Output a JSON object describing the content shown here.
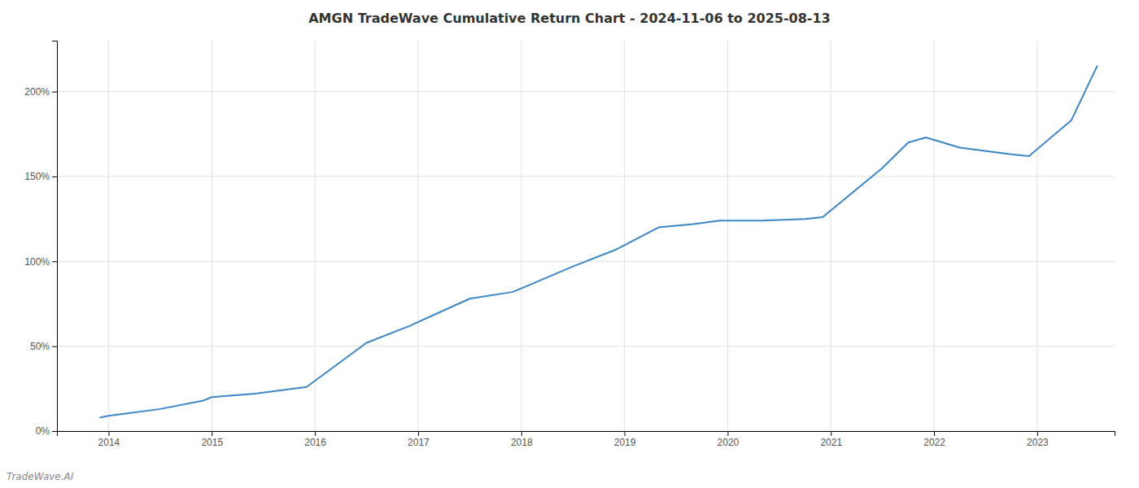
{
  "chart_data": {
    "type": "line",
    "title": "AMGN TradeWave Cumulative Return Chart - 2024-11-06 to 2025-08-13",
    "annotations": [
      "TradeWave.AI"
    ],
    "x": [
      2013.92,
      2014.0,
      2014.5,
      2014.92,
      2015.0,
      2015.42,
      2015.92,
      2016.5,
      2016.92,
      2017.5,
      2017.92,
      2018.5,
      2018.92,
      2019.33,
      2019.67,
      2019.92,
      2020.33,
      2020.75,
      2020.92,
      2021.5,
      2021.75,
      2021.92,
      2022.25,
      2022.75,
      2022.92,
      2023.33,
      2023.58
    ],
    "values": [
      8,
      9,
      13,
      18,
      20,
      22,
      26,
      52,
      62,
      78,
      82,
      97,
      107,
      120,
      122,
      124,
      124,
      125,
      126,
      155,
      170,
      173,
      167,
      163,
      162,
      183,
      215
    ],
    "color": "#3a86c8",
    "xlim": [
      2013.5,
      2023.75
    ],
    "ylim": [
      0,
      230
    ],
    "xticks": [
      2014,
      2015,
      2016,
      2017,
      2018,
      2019,
      2020,
      2021,
      2022,
      2023
    ],
    "yticks": [
      {
        "value": 0,
        "label": "0%"
      },
      {
        "value": 50,
        "label": "50%"
      },
      {
        "value": 100,
        "label": "100%"
      },
      {
        "value": 150,
        "label": "150%"
      },
      {
        "value": 200,
        "label": "200%"
      }
    ],
    "grid": true
  }
}
